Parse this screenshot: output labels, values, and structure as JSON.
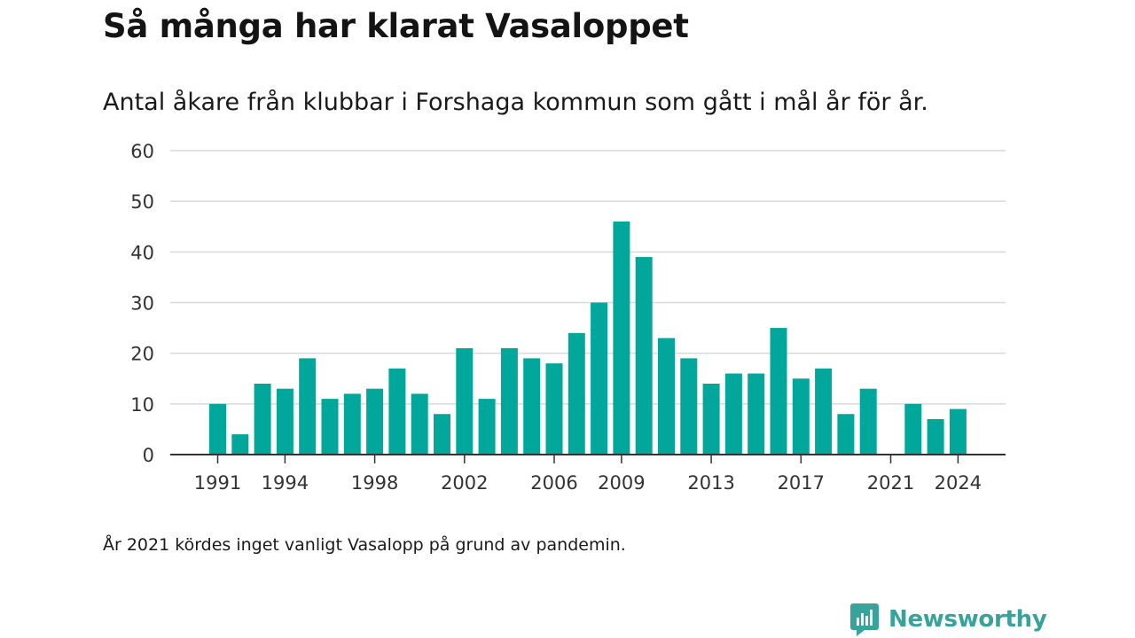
{
  "header": {
    "title": "Så många har klarat Vasaloppet",
    "subtitle": "Antal åkare från klubbar i Forshaga kommun som gått i mål år för år."
  },
  "footnote": "År 2021 kördes inget vanligt Vasalopp på grund av pandemin.",
  "brand": {
    "name": "Newsworthy",
    "icon": "newsworthy-logo-icon",
    "color": "#37a39b"
  },
  "chart_data": {
    "type": "bar",
    "title": "Så många har klarat Vasaloppet",
    "subtitle": "Antal åkare från klubbar i Forshaga kommun som gått i mål år för år.",
    "x": [
      1991,
      1992,
      1993,
      1994,
      1995,
      1996,
      1997,
      1998,
      1999,
      2000,
      2001,
      2002,
      2003,
      2004,
      2005,
      2006,
      2007,
      2008,
      2009,
      2010,
      2011,
      2012,
      2013,
      2014,
      2015,
      2016,
      2017,
      2018,
      2019,
      2020,
      2021,
      2022,
      2023,
      2024
    ],
    "values": [
      10,
      4,
      14,
      13,
      19,
      11,
      12,
      13,
      17,
      12,
      8,
      21,
      11,
      21,
      19,
      18,
      24,
      30,
      46,
      39,
      23,
      19,
      14,
      16,
      16,
      25,
      15,
      17,
      8,
      13,
      0,
      10,
      7,
      9
    ],
    "x_tick_labels": [
      "1991",
      "1994",
      "1998",
      "2002",
      "2006",
      "2009",
      "2013",
      "2017",
      "2021",
      "2024"
    ],
    "y_ticks": [
      0,
      10,
      20,
      30,
      40,
      50,
      60
    ],
    "ylim": [
      0,
      60
    ],
    "grid": true,
    "bar_color": "#00a79a",
    "xlabel": "",
    "ylabel": ""
  }
}
